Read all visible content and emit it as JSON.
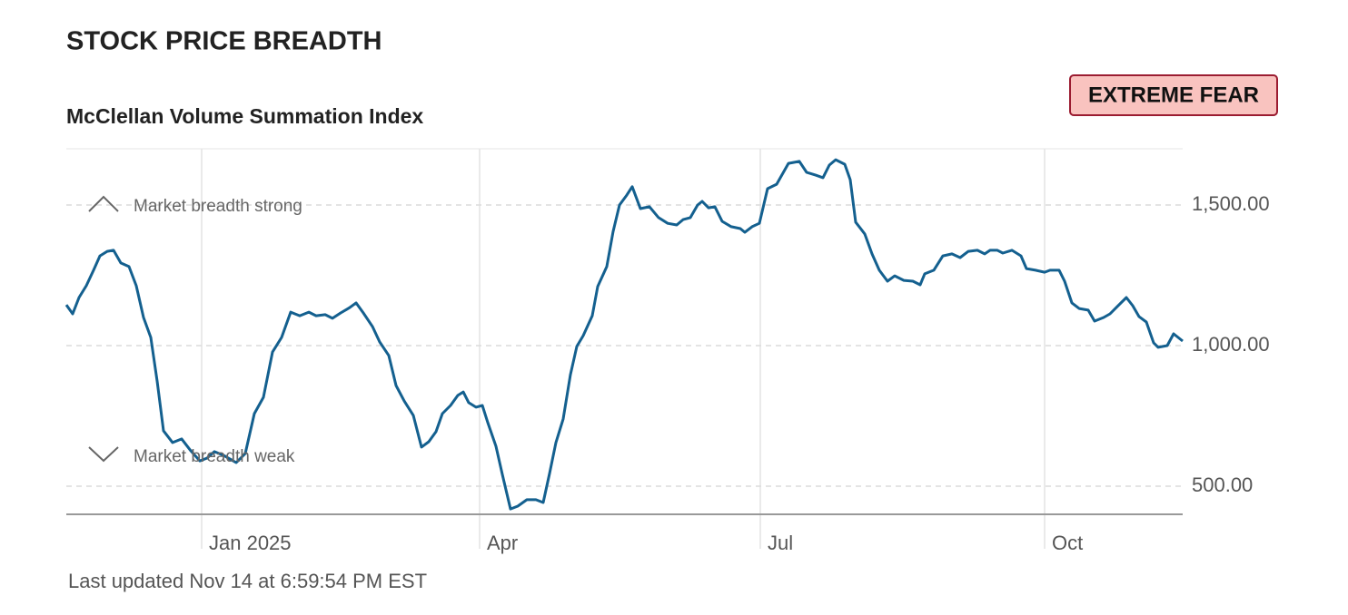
{
  "chart_data": {
    "type": "line",
    "title": "STOCK PRICE BREADTH",
    "subtitle": "McClellan Volume Summation Index",
    "rating": "EXTREME FEAR",
    "annotations": [
      "Market breadth strong",
      "Market breadth weak"
    ],
    "footer": "Last updated Nov 14 at 6:59:54 PM EST",
    "x": [
      0,
      7,
      14,
      22,
      30,
      37,
      45,
      52,
      60,
      69,
      77,
      85,
      93,
      100,
      107,
      117,
      127,
      137,
      147,
      155,
      163,
      173,
      187,
      197,
      207,
      217,
      227,
      237,
      247,
      257,
      267,
      275,
      285,
      293,
      302,
      312,
      319,
      327,
      337,
      345,
      355,
      363,
      372,
      382,
      391,
      399,
      407,
      414,
      423,
      431,
      437,
      443,
      451,
      458,
      464,
      473,
      480,
      489,
      497,
      507,
      517,
      525,
      532,
      539,
      547,
      555,
      562,
      569,
      579,
      585,
      595,
      602,
      609,
      617,
      623,
      632,
      642,
      652,
      662,
      672,
      679,
      687,
      695,
      700,
      707,
      714,
      722,
      732,
      742,
      747,
      755,
      763,
      772,
      782,
      795,
      807,
      815,
      825,
      833,
      840,
      847,
      857,
      863,
      869,
      879,
      887,
      895,
      904,
      912,
      922,
      932,
      940,
      945,
      955,
      965,
      975,
      984,
      993,
      1003,
      1011,
      1017,
      1025,
      1031,
      1041,
      1051,
      1057,
      1067,
      1077,
      1083,
      1093,
      1099,
      1107,
      1115,
      1125,
      1132,
      1142,
      1149,
      1157,
      1167,
      1174,
      1181,
      1189,
      1197,
      1202,
      1212,
      1219,
      1229
    ],
    "xlim": [
      0,
      1229
    ],
    "xticks": [
      {
        "value": 149,
        "label": "Jan 2025"
      },
      {
        "value": 455,
        "label": "Apr"
      },
      {
        "value": 764,
        "label": "Jul"
      },
      {
        "value": 1077,
        "label": "Oct"
      }
    ],
    "series": [
      {
        "name": "McClellan Volume Summation Index",
        "color": "#14608f",
        "values": [
          1145,
          1113,
          1171,
          1213,
          1268,
          1319,
          1335,
          1339,
          1294,
          1281,
          1213,
          1100,
          1029,
          874,
          697,
          655,
          668,
          626,
          590,
          600,
          623,
          610,
          584,
          616,
          758,
          816,
          977,
          1029,
          1119,
          1106,
          1119,
          1106,
          1110,
          1097,
          1116,
          1135,
          1152,
          1116,
          1068,
          1013,
          965,
          858,
          803,
          752,
          639,
          658,
          694,
          758,
          787,
          823,
          835,
          797,
          781,
          787,
          726,
          642,
          542,
          419,
          429,
          452,
          452,
          442,
          545,
          655,
          739,
          897,
          997,
          1035,
          1106,
          1210,
          1281,
          1406,
          1500,
          1535,
          1565,
          1487,
          1494,
          1455,
          1435,
          1429,
          1448,
          1455,
          1500,
          1513,
          1490,
          1494,
          1442,
          1423,
          1416,
          1403,
          1423,
          1435,
          1558,
          1574,
          1648,
          1655,
          1616,
          1606,
          1597,
          1642,
          1661,
          1645,
          1590,
          1439,
          1397,
          1326,
          1268,
          1229,
          1248,
          1232,
          1229,
          1216,
          1255,
          1268,
          1319,
          1326,
          1313,
          1335,
          1339,
          1326,
          1339,
          1339,
          1329,
          1339,
          1319,
          1274,
          1268,
          1261,
          1268,
          1268,
          1229,
          1152,
          1132,
          1126,
          1087,
          1100,
          1113,
          1139,
          1171,
          1142,
          1103,
          1084,
          1010,
          994,
          1000,
          1042,
          1016
        ]
      }
    ],
    "ylim": [
      400,
      1700
    ],
    "yticks": [
      {
        "value": 500,
        "label": "500.00"
      },
      {
        "value": 1000,
        "label": "1,000.00"
      },
      {
        "value": 1500,
        "label": "1,500.00"
      }
    ],
    "grid": true
  }
}
